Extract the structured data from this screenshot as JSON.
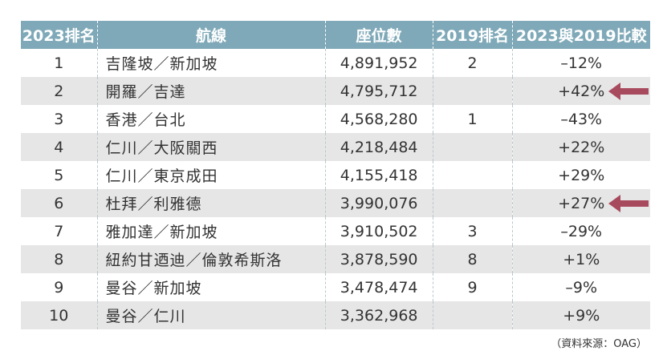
{
  "headers": [
    "2023排名",
    "航線",
    "座位數",
    "2019排名",
    "2023與2019比較"
  ],
  "rows": [
    {
      "rank": "1",
      "route": "吉隆坡／新加坡",
      "seats": "4,891,952",
      "rank2019": "2",
      "change": "–12%",
      "highlight": false
    },
    {
      "rank": "2",
      "route": "開羅／吉達",
      "seats": "4,795,712",
      "rank2019": "",
      "change": "+42%",
      "highlight": true
    },
    {
      "rank": "3",
      "route": "香港／台北",
      "seats": "4,568,280",
      "rank2019": "1",
      "change": "–43%",
      "highlight": false
    },
    {
      "rank": "4",
      "route": "仁川／大阪關西",
      "seats": "4,218,484",
      "rank2019": "",
      "change": "+22%",
      "highlight": false
    },
    {
      "rank": "5",
      "route": "仁川／東京成田",
      "seats": "4,155,418",
      "rank2019": "",
      "change": "+29%",
      "highlight": false
    },
    {
      "rank": "6",
      "route": "杜拜／利雅德",
      "seats": "3,990,076",
      "rank2019": "",
      "change": "+27%",
      "highlight": true
    },
    {
      "rank": "7",
      "route": "雅加達／新加坡",
      "seats": "3,910,502",
      "rank2019": "3",
      "change": "–29%",
      "highlight": false
    },
    {
      "rank": "8",
      "route": "紐約甘迺迪／倫敦希斯洛",
      "seats": "3,878,590",
      "rank2019": "8",
      "change": "+1%",
      "highlight": false
    },
    {
      "rank": "9",
      "route": "曼谷／新加坡",
      "seats": "3,478,474",
      "rank2019": "9",
      "change": "–9%",
      "highlight": false
    },
    {
      "rank": "10",
      "route": "曼谷／仁川",
      "seats": "3,362,968",
      "rank2019": "",
      "change": "+9%",
      "highlight": false
    }
  ],
  "source": "（資料來源：OAG）",
  "colors": {
    "header_bg": "#7fa9b8",
    "stripe": "#e6e6e6",
    "arrow": "#a84a5e"
  },
  "arrow_icon": "left-arrow-icon"
}
